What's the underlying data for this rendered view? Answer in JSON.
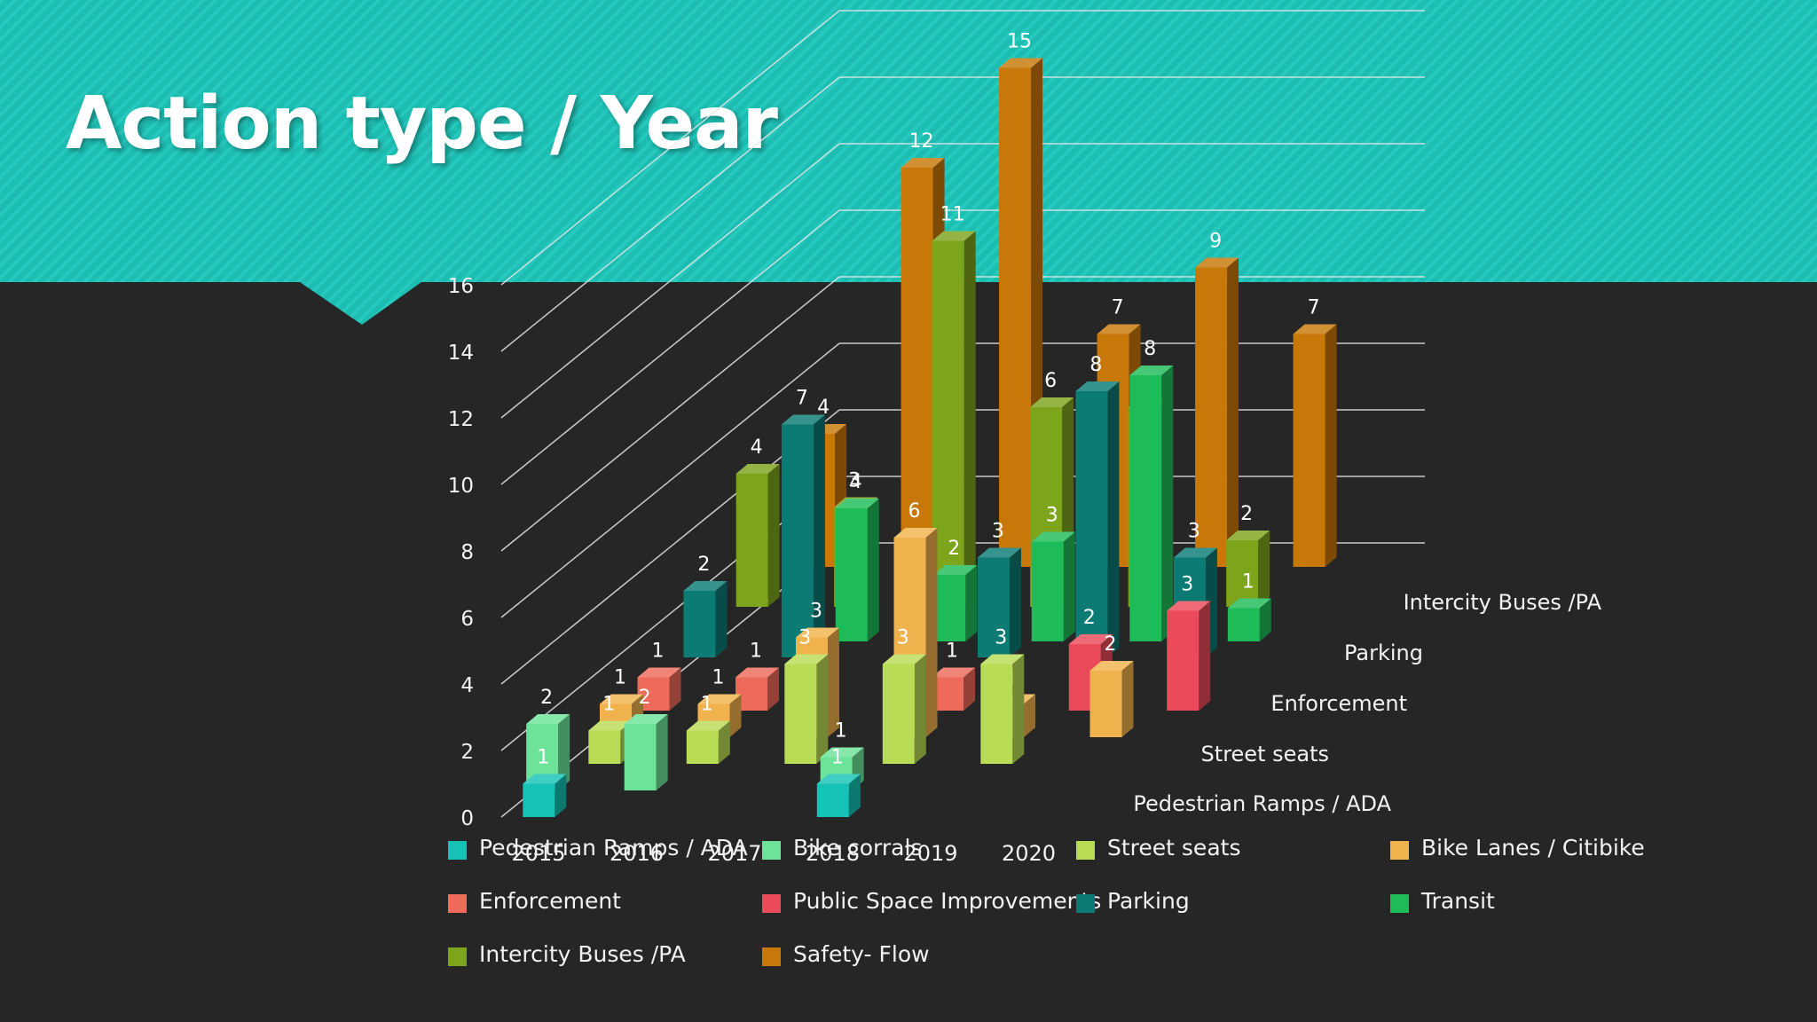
{
  "slide": {
    "title": "Action type / Year"
  },
  "colors": {
    "banner": "#1dbdb2",
    "background": "#262626",
    "Pedestrian Ramps / ADA": "#14c3b6",
    "Bike corrals": "#6de39a",
    "Street seats": "#b9dc56",
    "Bike Lanes / Citibike": "#f0b24c",
    "Enforcement": "#ee6a5a",
    "Public Space Improvements": "#ea4a59",
    "Parking": "#0b7b74",
    "Transit": "#1ebc58",
    "Intercity Buses /PA": "#7da51c",
    "Safety- Flow": "#c87808"
  },
  "chart_data": {
    "type": "bar",
    "subtype": "3d-column",
    "title": "Action type / Year",
    "categories": [
      "2015",
      "2016",
      "2017",
      "2018",
      "2019",
      "2020"
    ],
    "depth_labels": [
      "Pedestrian Ramps / ADA",
      "Street seats",
      "Enforcement",
      "Parking",
      "Intercity Buses /PA"
    ],
    "ylim": [
      0,
      16
    ],
    "yticks": [
      "0",
      "2",
      "4",
      "6",
      "8",
      "10",
      "12",
      "14",
      "16"
    ],
    "grid": true,
    "legend_position": "bottom",
    "series": [
      {
        "name": "Pedestrian Ramps / ADA",
        "values": [
          1,
          null,
          null,
          1,
          null,
          null
        ]
      },
      {
        "name": "Bike corrals",
        "values": [
          2,
          2,
          null,
          1,
          null,
          null
        ]
      },
      {
        "name": "Street seats",
        "values": [
          1,
          1,
          3,
          3,
          3,
          null
        ]
      },
      {
        "name": "Bike Lanes / Citibike",
        "values": [
          1,
          1,
          3,
          6,
          1,
          2
        ]
      },
      {
        "name": "Enforcement",
        "values": [
          1,
          1,
          null,
          1,
          null,
          null
        ]
      },
      {
        "name": "Public Space Improvements",
        "values": [
          null,
          null,
          null,
          null,
          2,
          3
        ]
      },
      {
        "name": "Parking",
        "values": [
          2,
          7,
          null,
          3,
          8,
          3
        ]
      },
      {
        "name": "Transit",
        "values": [
          null,
          4,
          2,
          3,
          8,
          1
        ]
      },
      {
        "name": "Intercity Buses /PA",
        "values": [
          4,
          3,
          11,
          6,
          6,
          2
        ]
      },
      {
        "name": "Safety- Flow",
        "values": [
          4,
          12,
          15,
          7,
          9,
          7
        ]
      }
    ]
  }
}
